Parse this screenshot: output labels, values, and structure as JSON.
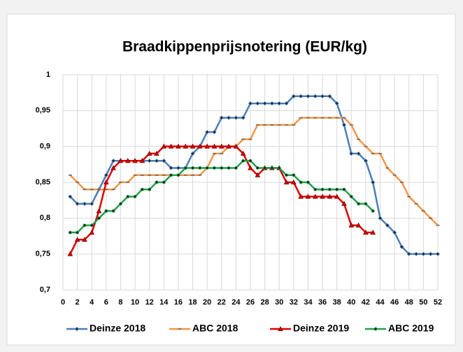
{
  "chart_data": {
    "type": "line",
    "title": "Braadkippenprijsnotering (EUR/kg)",
    "x": [
      1,
      2,
      3,
      4,
      5,
      6,
      7,
      8,
      9,
      10,
      11,
      12,
      13,
      14,
      15,
      16,
      17,
      18,
      19,
      20,
      21,
      22,
      23,
      24,
      25,
      26,
      27,
      28,
      29,
      30,
      31,
      32,
      33,
      34,
      35,
      36,
      37,
      38,
      39,
      40,
      41,
      42,
      43,
      44,
      45,
      46,
      47,
      48,
      49,
      50,
      51,
      52
    ],
    "xlim": [
      0,
      52
    ],
    "xticks": [
      0,
      2,
      4,
      6,
      8,
      10,
      12,
      14,
      16,
      18,
      20,
      22,
      24,
      26,
      28,
      30,
      32,
      34,
      36,
      38,
      40,
      42,
      44,
      46,
      48,
      50,
      52
    ],
    "ylim": [
      0.7,
      1
    ],
    "yticks": [
      {
        "value": 0.7,
        "label": "0,7"
      },
      {
        "value": 0.75,
        "label": "0,75"
      },
      {
        "value": 0.8,
        "label": "0,8"
      },
      {
        "value": 0.85,
        "label": "0,85"
      },
      {
        "value": 0.9,
        "label": "0,9"
      },
      {
        "value": 0.95,
        "label": "0,95"
      },
      1
    ],
    "grid": true,
    "legend": "bottom",
    "series": [
      {
        "name": "Deinze 2018",
        "color": "#4a7ebb",
        "marker": "diamond",
        "values": [
          0.83,
          0.82,
          0.82,
          0.82,
          0.84,
          0.86,
          0.88,
          0.88,
          0.88,
          0.88,
          0.88,
          0.88,
          0.88,
          0.88,
          0.87,
          0.87,
          0.87,
          0.89,
          0.9,
          0.92,
          0.92,
          0.94,
          0.94,
          0.94,
          0.94,
          0.96,
          0.96,
          0.96,
          0.96,
          0.96,
          0.96,
          0.97,
          0.97,
          0.97,
          0.97,
          0.97,
          0.97,
          0.96,
          0.93,
          0.89,
          0.89,
          0.88,
          0.85,
          0.8,
          0.79,
          0.78,
          0.76,
          0.75,
          0.75,
          0.75,
          0.75,
          0.75
        ]
      },
      {
        "name": "ABC 2018",
        "color": "#f79646",
        "marker": "dash",
        "values": [
          0.86,
          0.85,
          0.84,
          0.84,
          0.84,
          0.84,
          0.84,
          0.85,
          0.85,
          0.86,
          0.86,
          0.86,
          0.86,
          0.86,
          0.86,
          0.86,
          0.86,
          0.86,
          0.86,
          0.87,
          0.89,
          0.89,
          0.9,
          0.9,
          0.91,
          0.91,
          0.93,
          0.93,
          0.93,
          0.93,
          0.93,
          0.93,
          0.94,
          0.94,
          0.94,
          0.94,
          0.94,
          0.94,
          0.94,
          0.93,
          0.91,
          0.9,
          0.89,
          0.89,
          0.87,
          0.86,
          0.85,
          0.83,
          0.82,
          0.81,
          0.8,
          0.79
        ]
      },
      {
        "name": "Deinze 2019",
        "color": "#e00000",
        "marker": "triangle",
        "values": [
          0.75,
          0.77,
          0.77,
          0.78,
          0.81,
          0.85,
          0.87,
          0.88,
          0.88,
          0.88,
          0.88,
          0.89,
          0.89,
          0.9,
          0.9,
          0.9,
          0.9,
          0.9,
          0.9,
          0.9,
          0.9,
          0.9,
          0.9,
          0.9,
          0.89,
          0.87,
          0.86,
          0.87,
          0.87,
          0.87,
          0.85,
          0.85,
          0.83,
          0.83,
          0.83,
          0.83,
          0.83,
          0.83,
          0.82,
          0.79,
          0.79,
          0.78,
          0.78,
          null,
          null,
          null,
          null,
          null,
          null,
          null,
          null,
          null
        ]
      },
      {
        "name": "ABC 2019",
        "color": "#1ea24a",
        "marker": "circle",
        "values": [
          0.78,
          0.78,
          0.79,
          0.79,
          0.8,
          0.81,
          0.81,
          0.82,
          0.83,
          0.83,
          0.84,
          0.84,
          0.85,
          0.85,
          0.86,
          0.86,
          0.87,
          0.87,
          0.87,
          0.87,
          0.87,
          0.87,
          0.87,
          0.87,
          0.88,
          0.88,
          0.87,
          0.87,
          0.87,
          0.87,
          0.86,
          0.86,
          0.85,
          0.85,
          0.84,
          0.84,
          0.84,
          0.84,
          0.84,
          0.83,
          0.82,
          0.82,
          0.81,
          null,
          null,
          null,
          null,
          null,
          null,
          null,
          null,
          null
        ]
      }
    ]
  }
}
